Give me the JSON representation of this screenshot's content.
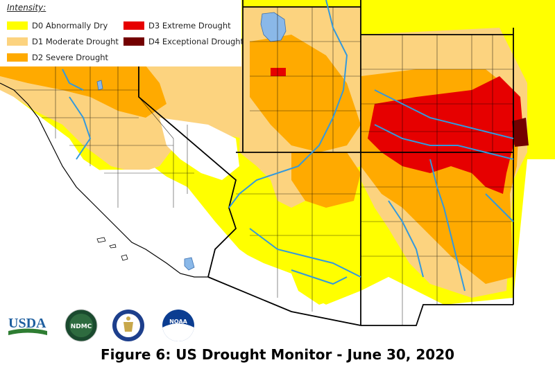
{
  "legend": {
    "title": "Intensity:",
    "items": [
      {
        "label": "D0 Abnormally Dry",
        "color": "#ffff00"
      },
      {
        "label": "D1 Moderate Drought",
        "color": "#fcd37f"
      },
      {
        "label": "D2 Severe Drought",
        "color": "#ffaa00"
      },
      {
        "label": "D3 Extreme Drought",
        "color": "#e60000"
      },
      {
        "label": "D4 Exceptional Drought",
        "color": "#730000"
      }
    ]
  },
  "logos": {
    "usda": "USDA",
    "ndmc": "NDMC",
    "doc": "dept-of-commerce-seal-icon",
    "noaa": "NOAA"
  },
  "caption": "Figure 6: US Drought Monitor - June 30, 2020",
  "colors": {
    "none": "#ffffff",
    "rivers": "#3399dd",
    "lakes": "#8ab8e8",
    "borders": "#000000"
  }
}
